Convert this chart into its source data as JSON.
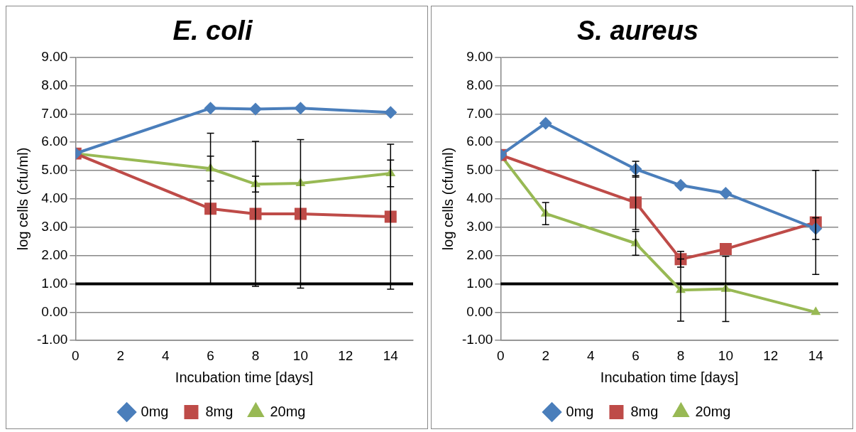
{
  "chart_data": [
    {
      "type": "line",
      "title": "E. coli",
      "xlabel": "Incubation time [days]",
      "ylabel": "log cells (cfu/ml)",
      "xlim": [
        0,
        15
      ],
      "xticks": [
        0,
        2,
        4,
        6,
        8,
        10,
        12,
        14
      ],
      "ylim": [
        -1,
        9
      ],
      "yticks": [
        {
          "value": -1,
          "label": "-1.00"
        },
        {
          "value": 0,
          "label": "0.00"
        },
        {
          "value": 1,
          "label": "1.00"
        },
        {
          "value": 2,
          "label": "2.00"
        },
        {
          "value": 3,
          "label": "3.00"
        },
        {
          "value": 4,
          "label": "4.00"
        },
        {
          "value": 5,
          "label": "5.00"
        },
        {
          "value": 6,
          "label": "6.00"
        },
        {
          "value": 7,
          "label": "7.00"
        },
        {
          "value": 8,
          "label": "8.00"
        },
        {
          "value": 9,
          "label": "9.00"
        }
      ],
      "grid": "y",
      "legend": "bottom",
      "ref_lines": [
        {
          "axis": "y",
          "value": 1,
          "color": "#000000"
        }
      ],
      "series": [
        {
          "name": "0mg",
          "color": "#4a7ebb",
          "marker": "diamond",
          "x": [
            0,
            6,
            8,
            10,
            14
          ],
          "values": [
            5.6,
            7.2,
            7.17,
            7.2,
            7.05
          ]
        },
        {
          "name": "8mg",
          "color": "#be4b48",
          "marker": "square",
          "x": [
            0,
            6,
            8,
            10,
            14
          ],
          "values": [
            5.6,
            3.65,
            3.47,
            3.47,
            3.37
          ],
          "errors": [
            null,
            2.67,
            2.56,
            2.62,
            2.56
          ]
        },
        {
          "name": "20mg",
          "color": "#98b954",
          "marker": "triangle",
          "x": [
            0,
            6,
            8,
            10,
            14
          ],
          "values": [
            5.6,
            5.07,
            4.52,
            4.55,
            4.9
          ],
          "errors": [
            null,
            0.44,
            0.28,
            null,
            0.47
          ]
        }
      ]
    },
    {
      "type": "line",
      "title": "S. aureus",
      "xlabel": "Incubation time [days]",
      "ylabel": "log cells (cfu/ml)",
      "xlim": [
        0,
        15
      ],
      "xticks": [
        0,
        2,
        4,
        6,
        8,
        10,
        12,
        14
      ],
      "ylim": [
        -1,
        9
      ],
      "yticks": [
        {
          "value": -1,
          "label": "-1.00"
        },
        {
          "value": 0,
          "label": "0.00"
        },
        {
          "value": 1,
          "label": "1.00"
        },
        {
          "value": 2,
          "label": "2.00"
        },
        {
          "value": 3,
          "label": "3.00"
        },
        {
          "value": 4,
          "label": "4.00"
        },
        {
          "value": 5,
          "label": "5.00"
        },
        {
          "value": 6,
          "label": "6.00"
        },
        {
          "value": 7,
          "label": "7.00"
        },
        {
          "value": 8,
          "label": "8.00"
        },
        {
          "value": 9,
          "label": "9.00"
        }
      ],
      "grid": "y",
      "legend": "bottom",
      "ref_lines": [
        {
          "axis": "y",
          "value": 1,
          "color": "#000000"
        }
      ],
      "series": [
        {
          "name": "0mg",
          "color": "#4a7ebb",
          "marker": "diamond",
          "x": [
            0,
            2,
            6,
            8,
            10,
            14
          ],
          "values": [
            5.55,
            6.67,
            5.05,
            4.48,
            4.2,
            2.95
          ],
          "errors": [
            null,
            null,
            0.28,
            null,
            null,
            0.38
          ]
        },
        {
          "name": "8mg",
          "color": "#be4b48",
          "marker": "square",
          "x": [
            0,
            6,
            8,
            10,
            14
          ],
          "values": [
            5.55,
            3.87,
            1.87,
            2.23,
            3.17
          ],
          "errors": [
            null,
            0.95,
            0.28,
            null,
            1.84
          ]
        },
        {
          "name": "20mg",
          "color": "#98b954",
          "marker": "triangle",
          "x": [
            0,
            2,
            6,
            8,
            10,
            14
          ],
          "values": [
            5.55,
            3.48,
            2.43,
            0.78,
            0.82,
            0.0
          ],
          "errors": [
            null,
            0.39,
            0.42,
            1.1,
            1.15,
            null
          ]
        }
      ]
    }
  ]
}
